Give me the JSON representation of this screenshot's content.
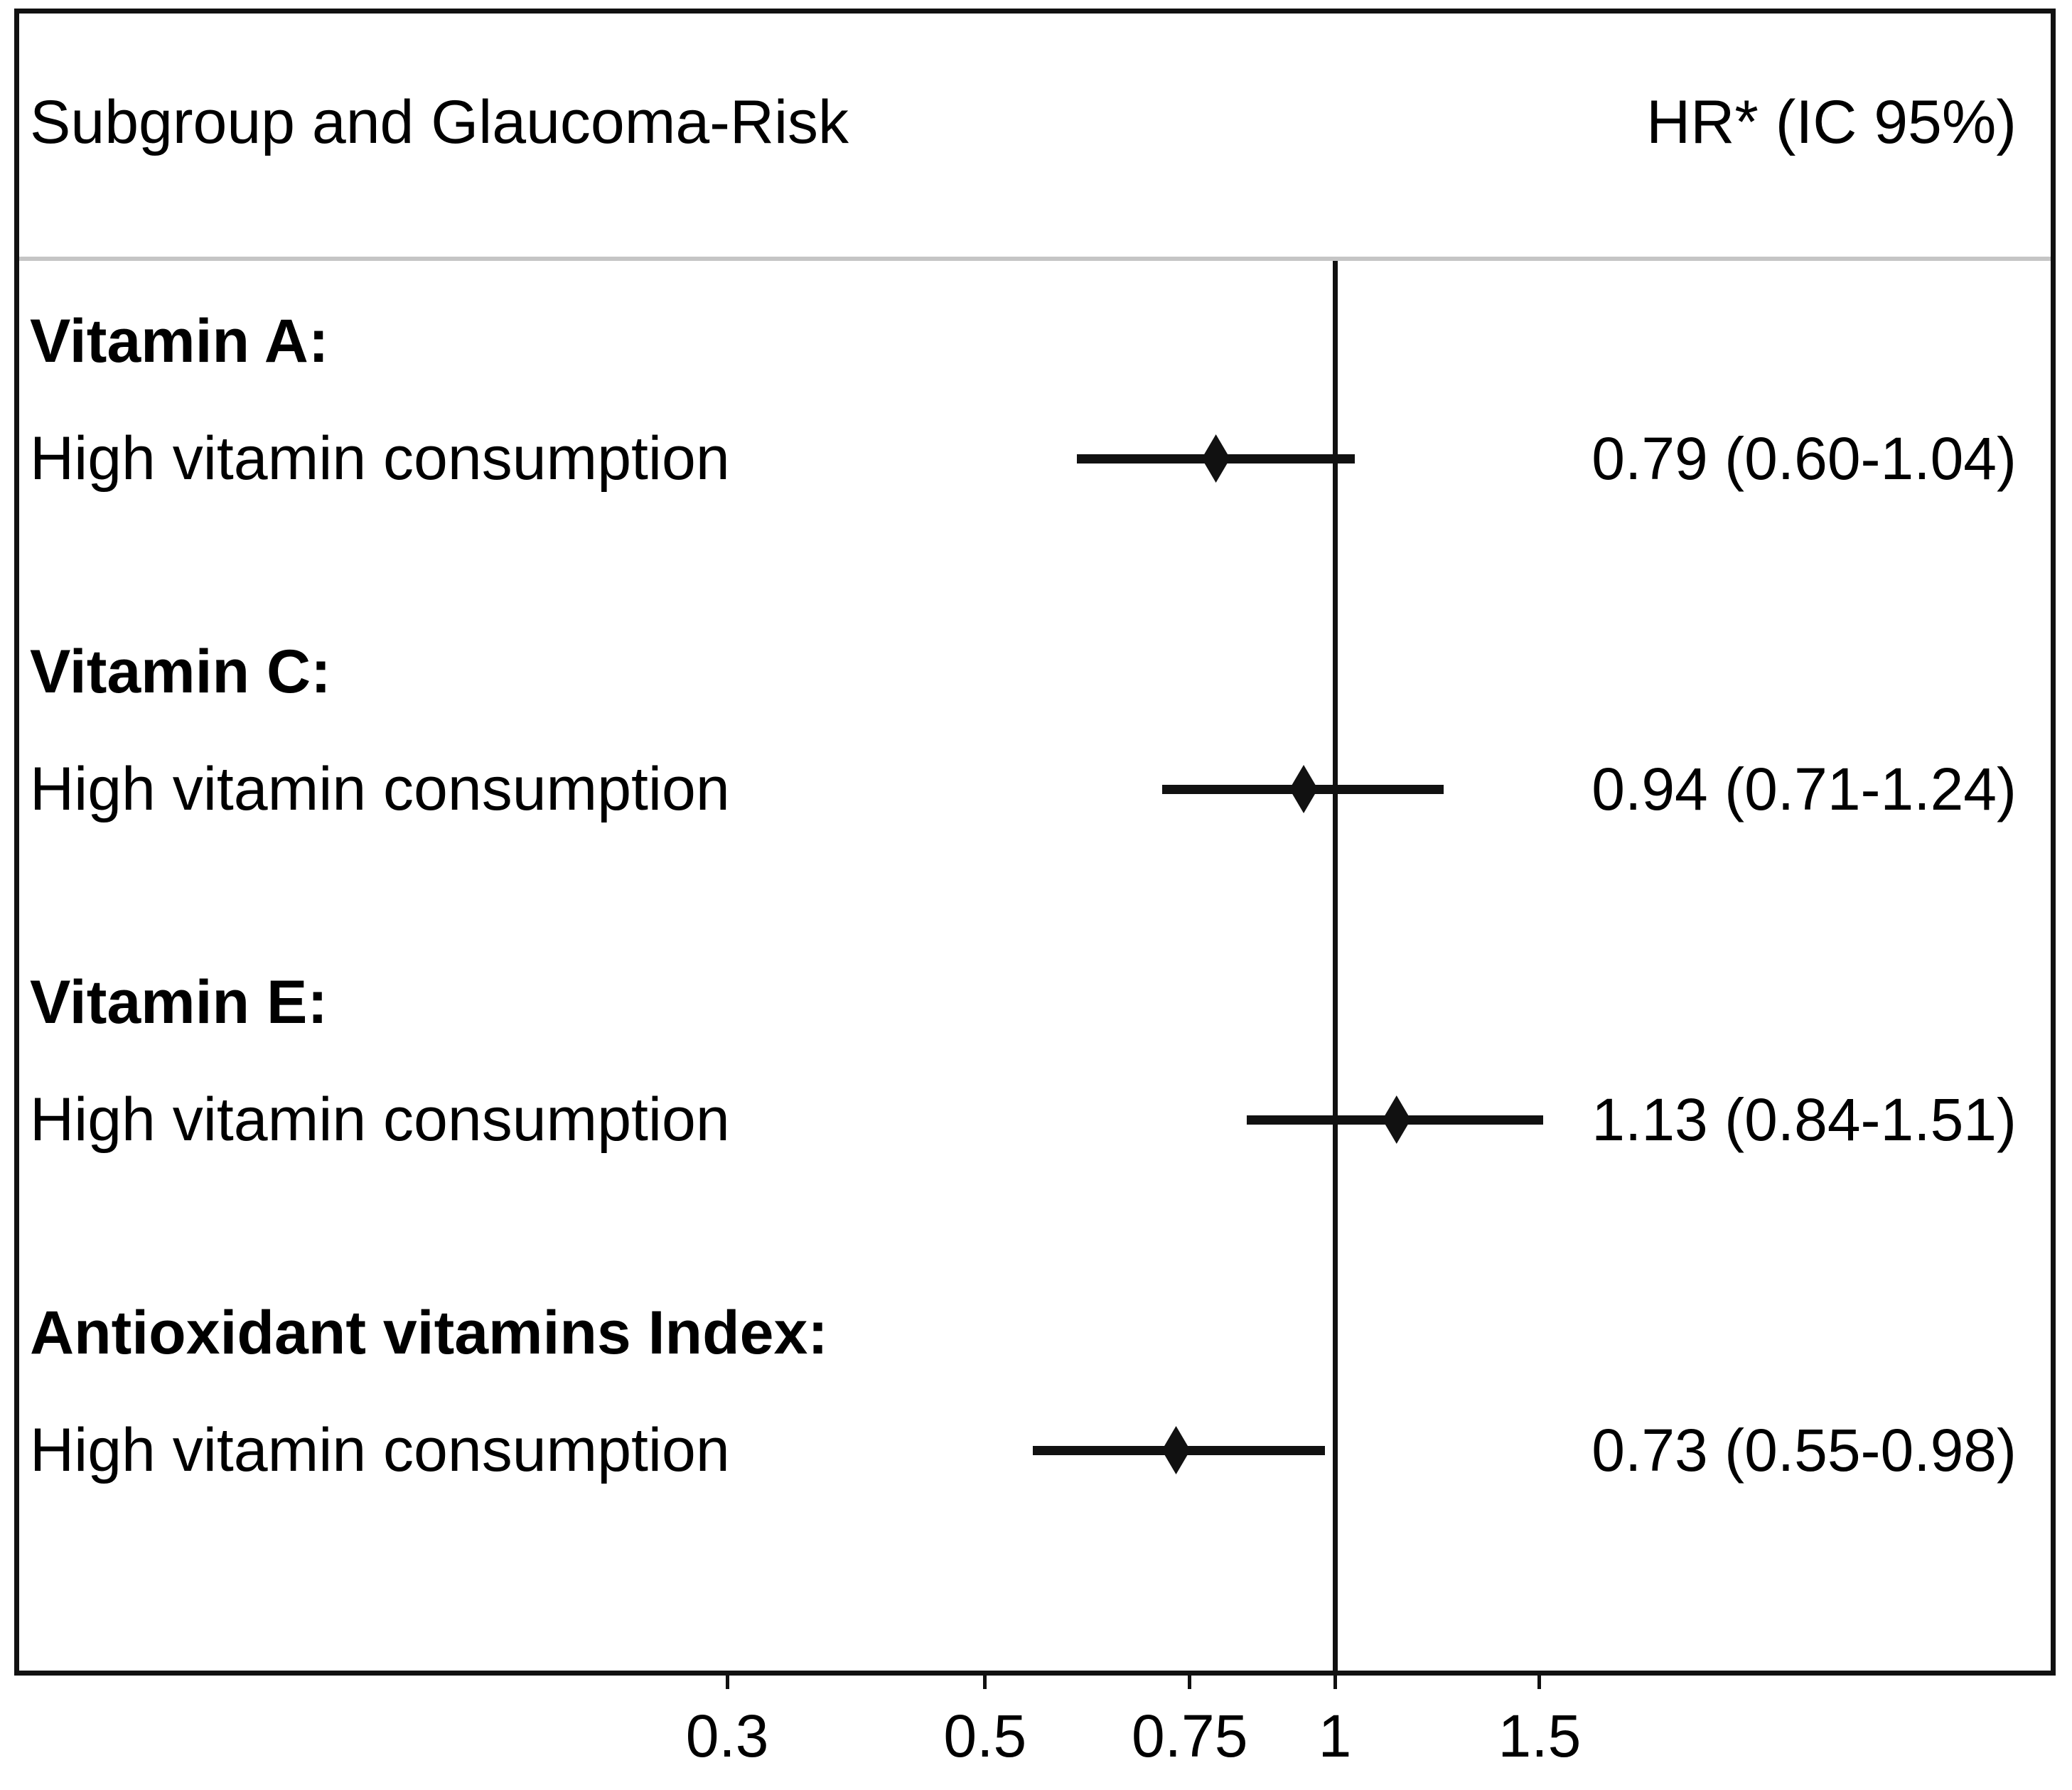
{
  "header": {
    "left": "Subgroup and Glaucoma-Risk",
    "right": "HR* (IC 95%)"
  },
  "colors": {
    "background": "#ffffff",
    "text": "#000000",
    "line": "#111111",
    "separator": "#c5c5c5"
  },
  "chart_data": {
    "type": "scatter",
    "variant": "forest-plot",
    "title_left": "Subgroup and Glaucoma-Risk",
    "title_right": "HR* (IC 95%)",
    "x_scale": "log",
    "x_ticks": [
      0.3,
      0.5,
      0.75,
      1,
      1.5
    ],
    "x_tick_labels": [
      "0.3",
      "0.5",
      "0.75",
      "1",
      "1.5"
    ],
    "reference_line": 1,
    "grid": false,
    "legend": false,
    "groups": [
      {
        "group": "Vitamin A:",
        "label": "High vitamin consumption",
        "hr": 0.79,
        "ci_low": 0.6,
        "ci_high": 1.04,
        "hr_text": "0.79 (0.60-1.04)"
      },
      {
        "group": "Vitamin C:",
        "label": "High vitamin consumption",
        "hr": 0.94,
        "ci_low": 0.71,
        "ci_high": 1.24,
        "hr_text": "0.94 (0.71-1.24)"
      },
      {
        "group": "Vitamin E:",
        "label": "High vitamin consumption",
        "hr": 1.13,
        "ci_low": 0.84,
        "ci_high": 1.51,
        "hr_text": "1.13 (0.84-1.51)"
      },
      {
        "group": "Antioxidant vitamins Index:",
        "label": "High vitamin consumption",
        "hr": 0.73,
        "ci_low": 0.55,
        "ci_high": 0.98,
        "hr_text": "0.73 (0.55-0.98)"
      }
    ]
  }
}
